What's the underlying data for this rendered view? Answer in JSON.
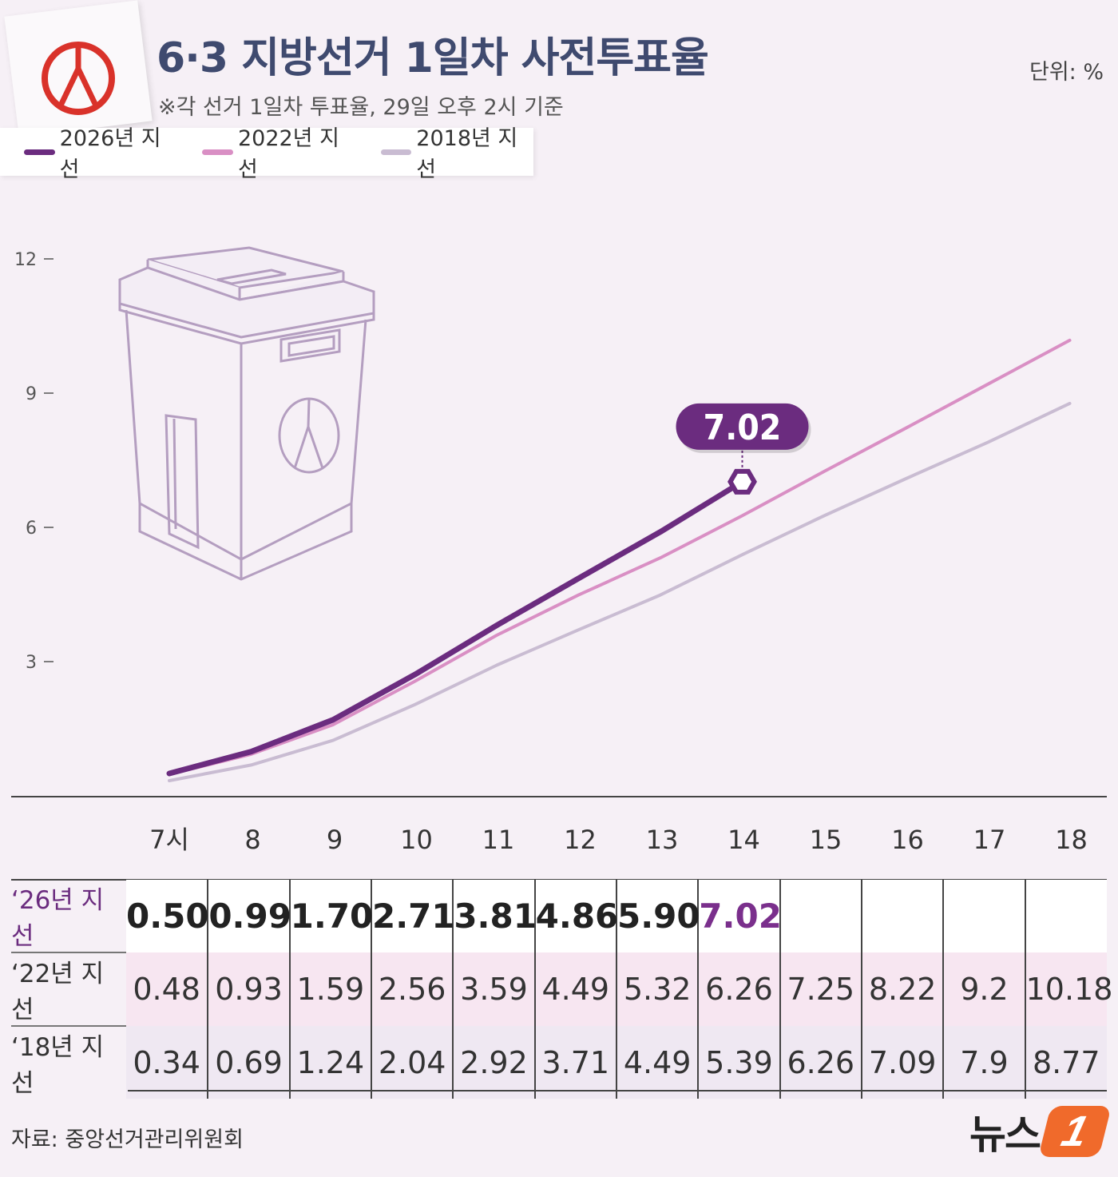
{
  "header": {
    "title": "6·3 지방선거 1일차 사전투표율",
    "subtitle": "※각 선거 1일차 투표율, 29일 오후 2시 기준",
    "unit": "단위: %"
  },
  "legend": [
    {
      "label": "2026년 지선",
      "color": "#6b2c7f"
    },
    {
      "label": "2022년 지선",
      "color": "#d98fc4"
    },
    {
      "label": "2018년 지선",
      "color": "#c9bcd2"
    }
  ],
  "callout": {
    "label": "7.02"
  },
  "chart_data": {
    "type": "line",
    "categories": [
      "7시",
      "8",
      "9",
      "10",
      "11",
      "12",
      "13",
      "14",
      "15",
      "16",
      "17",
      "18"
    ],
    "ylim": [
      0,
      12
    ],
    "yticks": [
      "12",
      "9",
      "6",
      "3"
    ],
    "series": [
      {
        "name": "2026년 지선",
        "color": "#6b2c7f",
        "values": [
          0.5,
          0.99,
          1.7,
          2.71,
          3.81,
          4.86,
          5.9,
          7.02,
          null,
          null,
          null,
          null
        ]
      },
      {
        "name": "2022년 지선",
        "color": "#d98fc4",
        "values": [
          0.48,
          0.93,
          1.59,
          2.56,
          3.59,
          4.49,
          5.32,
          6.26,
          7.25,
          8.22,
          9.2,
          10.18
        ]
      },
      {
        "name": "2018년 지선",
        "color": "#c9bcd2",
        "values": [
          0.34,
          0.69,
          1.24,
          2.04,
          2.92,
          3.71,
          4.49,
          5.39,
          6.26,
          7.09,
          7.9,
          8.77
        ]
      }
    ],
    "grid": false,
    "legend_position": "top-left"
  },
  "table": {
    "rows": [
      {
        "label": "‘26년 지선",
        "values": [
          "0.50",
          "0.99",
          "1.70",
          "2.71",
          "3.81",
          "4.86",
          "5.90",
          "7.02",
          "",
          "",
          "",
          ""
        ]
      },
      {
        "label": "‘22년 지선",
        "values": [
          "0.48",
          "0.93",
          "1.59",
          "2.56",
          "3.59",
          "4.49",
          "5.32",
          "6.26",
          "7.25",
          "8.22",
          "9.2",
          "10.18"
        ]
      },
      {
        "label": "‘18년 지선",
        "values": [
          "0.34",
          "0.69",
          "1.24",
          "2.04",
          "2.92",
          "3.71",
          "4.49",
          "5.39",
          "6.26",
          "7.09",
          "7.9",
          "8.77"
        ]
      }
    ]
  },
  "footer": {
    "source": "자료: 중앙선거관리위원회",
    "brand": "뉴스",
    "brand_badge": "1"
  }
}
